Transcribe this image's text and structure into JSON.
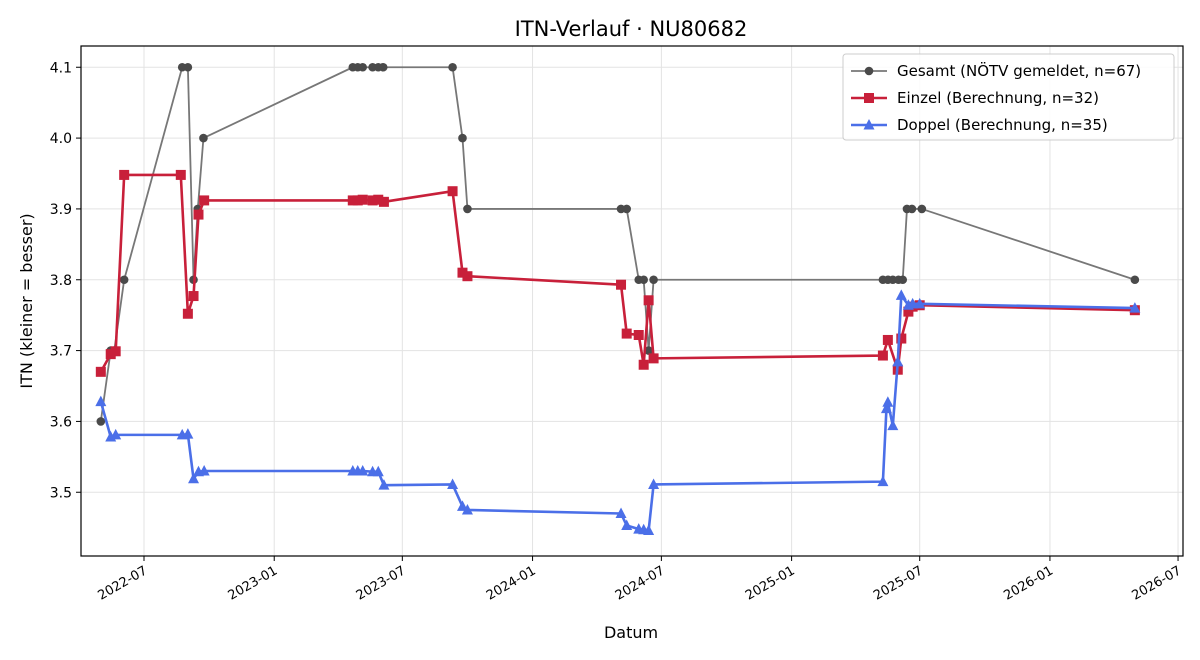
{
  "chart_data": {
    "type": "line",
    "title": "ITN-Verlauf · NU80682",
    "xlabel": "Datum",
    "ylabel": "ITN  (kleiner = besser)",
    "x_type": "date",
    "xlim": [
      "2022-04-03",
      "2026-07-08"
    ],
    "ylim": [
      3.41,
      4.13
    ],
    "grid": true,
    "legend_position": "top-right",
    "x_ticks": [
      {
        "value": "2022-07-01",
        "label": "2022-07"
      },
      {
        "value": "2023-01-01",
        "label": "2023-01"
      },
      {
        "value": "2023-07-01",
        "label": "2023-07"
      },
      {
        "value": "2024-01-01",
        "label": "2024-01"
      },
      {
        "value": "2024-07-01",
        "label": "2024-07"
      },
      {
        "value": "2025-01-01",
        "label": "2025-01"
      },
      {
        "value": "2025-07-01",
        "label": "2025-07"
      },
      {
        "value": "2026-01-01",
        "label": "2026-01"
      },
      {
        "value": "2026-07-01",
        "label": "2026-07"
      }
    ],
    "y_ticks": [
      {
        "value": 3.5,
        "label": "3.5"
      },
      {
        "value": 3.6,
        "label": "3.6"
      },
      {
        "value": 3.7,
        "label": "3.7"
      },
      {
        "value": 3.8,
        "label": "3.8"
      },
      {
        "value": 3.9,
        "label": "3.9"
      },
      {
        "value": 4.0,
        "label": "4.0"
      },
      {
        "value": 4.1,
        "label": "4.1"
      }
    ],
    "series": [
      {
        "name": "Gesamt (NÖTV gemeldet, n=67)",
        "color": "#4a4a4a",
        "line_color": "#777777",
        "marker": "circle",
        "points": [
          [
            "2022-05-01",
            3.6
          ],
          [
            "2022-05-15",
            3.7
          ],
          [
            "2022-05-20",
            3.7
          ],
          [
            "2022-06-03",
            3.8
          ],
          [
            "2022-08-24",
            4.1
          ],
          [
            "2022-09-01",
            4.1
          ],
          [
            "2022-09-09",
            3.8
          ],
          [
            "2022-09-15",
            3.9
          ],
          [
            "2022-09-23",
            4.0
          ],
          [
            "2023-04-22",
            4.1
          ],
          [
            "2023-04-29",
            4.1
          ],
          [
            "2023-05-06",
            4.1
          ],
          [
            "2023-05-20",
            4.1
          ],
          [
            "2023-05-28",
            4.1
          ],
          [
            "2023-06-04",
            4.1
          ],
          [
            "2023-09-10",
            4.1
          ],
          [
            "2023-09-24",
            4.0
          ],
          [
            "2023-10-01",
            3.9
          ],
          [
            "2024-05-05",
            3.9
          ],
          [
            "2024-05-13",
            3.9
          ],
          [
            "2024-05-30",
            3.8
          ],
          [
            "2024-06-06",
            3.8
          ],
          [
            "2024-06-13",
            3.7
          ],
          [
            "2024-06-20",
            3.8
          ],
          [
            "2025-05-10",
            3.8
          ],
          [
            "2025-05-17",
            3.8
          ],
          [
            "2025-05-24",
            3.8
          ],
          [
            "2025-06-01",
            3.8
          ],
          [
            "2025-06-07",
            3.8
          ],
          [
            "2025-06-13",
            3.9
          ],
          [
            "2025-06-20",
            3.9
          ],
          [
            "2025-07-04",
            3.9
          ],
          [
            "2026-05-01",
            3.8
          ]
        ]
      },
      {
        "name": "Einzel (Berechnung, n=32)",
        "color": "#c8203a",
        "line_color": "#c8203a",
        "marker": "square",
        "points": [
          [
            "2022-05-01",
            3.67
          ],
          [
            "2022-05-15",
            3.695
          ],
          [
            "2022-05-22",
            3.699
          ],
          [
            "2022-06-03",
            3.948
          ],
          [
            "2022-08-22",
            3.948
          ],
          [
            "2022-09-01",
            3.752
          ],
          [
            "2022-09-09",
            3.777
          ],
          [
            "2022-09-16",
            3.892
          ],
          [
            "2022-09-24",
            3.912
          ],
          [
            "2023-04-22",
            3.912
          ],
          [
            "2023-04-29",
            3.912
          ],
          [
            "2023-05-06",
            3.913
          ],
          [
            "2023-05-20",
            3.912
          ],
          [
            "2023-05-28",
            3.913
          ],
          [
            "2023-06-05",
            3.91
          ],
          [
            "2023-09-10",
            3.925
          ],
          [
            "2023-09-24",
            3.81
          ],
          [
            "2023-10-01",
            3.805
          ],
          [
            "2024-05-05",
            3.793
          ],
          [
            "2024-05-13",
            3.724
          ],
          [
            "2024-05-30",
            3.722
          ],
          [
            "2024-06-06",
            3.68
          ],
          [
            "2024-06-13",
            3.771
          ],
          [
            "2024-06-20",
            3.689
          ],
          [
            "2025-05-10",
            3.693
          ],
          [
            "2025-05-17",
            3.715
          ],
          [
            "2025-05-31",
            3.673
          ],
          [
            "2025-06-05",
            3.717
          ],
          [
            "2025-06-15",
            3.755
          ],
          [
            "2025-06-21",
            3.762
          ],
          [
            "2025-07-01",
            3.764
          ],
          [
            "2026-05-01",
            3.757
          ]
        ]
      },
      {
        "name": "Doppel (Berechnung, n=35)",
        "color": "#4b6fe8",
        "line_color": "#4b6fe8",
        "marker": "triangle",
        "points": [
          [
            "2022-05-01",
            3.628
          ],
          [
            "2022-05-15",
            3.578
          ],
          [
            "2022-05-22",
            3.581
          ],
          [
            "2022-08-24",
            3.581
          ],
          [
            "2022-09-01",
            3.582
          ],
          [
            "2022-09-09",
            3.519
          ],
          [
            "2022-09-16",
            3.529
          ],
          [
            "2022-09-24",
            3.53
          ],
          [
            "2023-04-22",
            3.53
          ],
          [
            "2023-04-29",
            3.53
          ],
          [
            "2023-05-06",
            3.53
          ],
          [
            "2023-05-20",
            3.529
          ],
          [
            "2023-05-28",
            3.529
          ],
          [
            "2023-06-05",
            3.51
          ],
          [
            "2023-09-10",
            3.511
          ],
          [
            "2023-09-24",
            3.48
          ],
          [
            "2023-10-01",
            3.475
          ],
          [
            "2024-05-05",
            3.47
          ],
          [
            "2024-05-13",
            3.453
          ],
          [
            "2024-05-30",
            3.448
          ],
          [
            "2024-06-06",
            3.447
          ],
          [
            "2024-06-13",
            3.446
          ],
          [
            "2024-06-20",
            3.511
          ],
          [
            "2025-05-10",
            3.515
          ],
          [
            "2025-05-15",
            3.618
          ],
          [
            "2025-05-17",
            3.627
          ],
          [
            "2025-05-24",
            3.594
          ],
          [
            "2025-05-31",
            3.684
          ],
          [
            "2025-06-05",
            3.778
          ],
          [
            "2025-06-15",
            3.764
          ],
          [
            "2025-06-21",
            3.766
          ],
          [
            "2025-07-01",
            3.766
          ],
          [
            "2026-05-01",
            3.76
          ]
        ]
      }
    ]
  }
}
